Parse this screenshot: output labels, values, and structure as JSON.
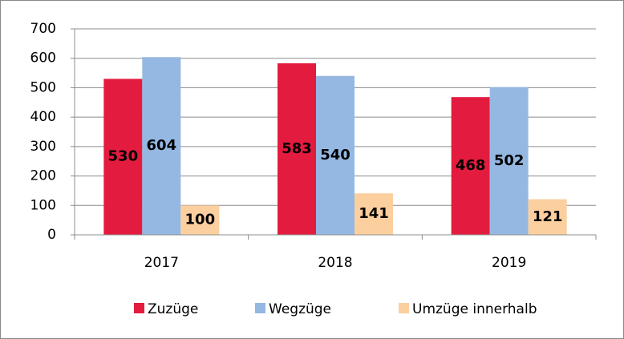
{
  "chart_data": {
    "type": "bar",
    "categories": [
      "2017",
      "2018",
      "2019"
    ],
    "series": [
      {
        "name": "Zuzüge",
        "color": "#e31b3e",
        "values": [
          530,
          583,
          468
        ]
      },
      {
        "name": "Wegzüge",
        "color": "#95b8e3",
        "values": [
          604,
          540,
          502
        ]
      },
      {
        "name": "Umzüge innerhalb",
        "color": "#fccf9f",
        "values": [
          100,
          141,
          121
        ]
      }
    ],
    "ylim": [
      0,
      700
    ],
    "yticks": [
      0,
      100,
      200,
      300,
      400,
      500,
      600,
      700
    ],
    "grid": true,
    "legend": "bottom"
  }
}
